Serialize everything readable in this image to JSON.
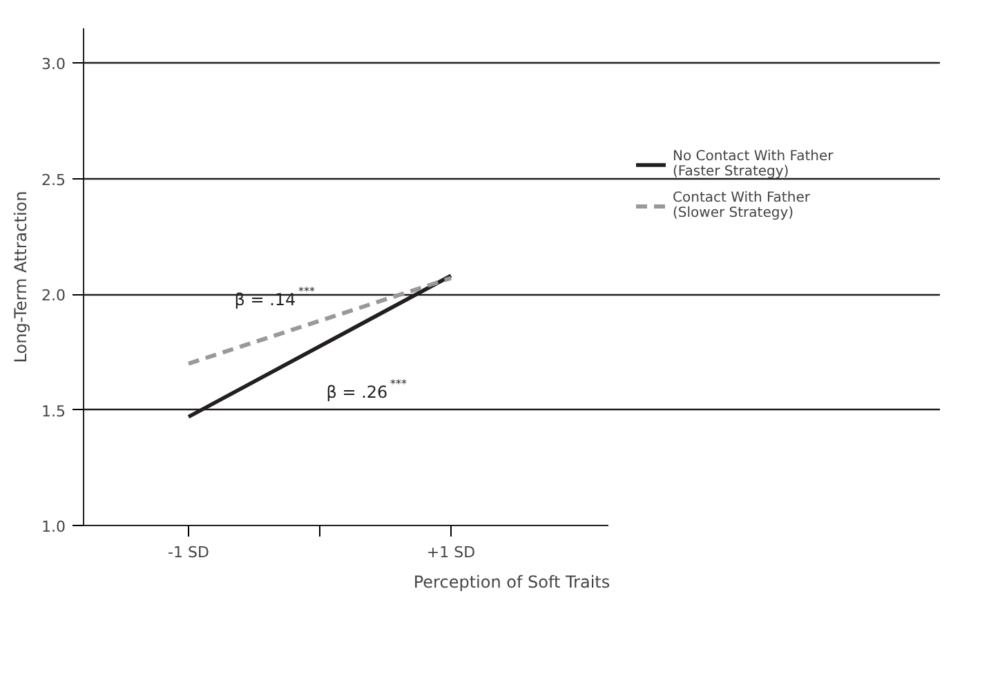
{
  "chart_data": {
    "type": "line",
    "xlabel": "Perception of Soft Traits",
    "ylabel": "Long-Term Attraction",
    "x": [
      -1,
      1
    ],
    "series": [
      {
        "name": "No Contact With Father\n(Faster Strategy)",
        "color": "#231f20",
        "values": [
          1.47,
          2.08
        ],
        "line_style": "solid"
      },
      {
        "name": "Contact With Father\n(Slower Strategy)",
        "color": "#999999",
        "values": [
          1.7,
          2.07
        ],
        "line_style": "dashed"
      }
    ],
    "xlim": [
      -1.8,
      2.2
    ],
    "xticks": [
      {
        "value": -1,
        "label": "-1 SD"
      },
      {
        "value": 0,
        "label": null
      },
      {
        "value": 1,
        "label": "+1 SD"
      }
    ],
    "ylim": [
      1.0,
      3.15
    ],
    "yticks": [
      {
        "value": 1.0,
        "label": "1.0"
      },
      {
        "value": 1.5,
        "label": "1.5"
      },
      {
        "value": 2.0,
        "label": "2.0"
      },
      {
        "value": 2.5,
        "label": "2.5"
      },
      {
        "value": 3.0,
        "label": "3.0"
      }
    ],
    "grid": "y",
    "legend": "right",
    "annotations": [
      "β = .14$^{***}$",
      "β = .26$^{***}$"
    ]
  }
}
